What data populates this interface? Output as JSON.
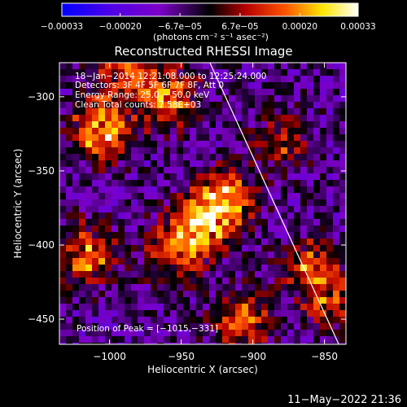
{
  "chart_data": {
    "type": "heatmap",
    "title": "Reconstructed RHESSI Image",
    "xlabel": "Heliocentric X (arcsec)",
    "ylabel": "Heliocentric Y (arcsec)",
    "xlim": [
      -1035,
      -835
    ],
    "ylim": [
      -467,
      -277
    ],
    "xticks": [
      -1000,
      -950,
      -900,
      -850
    ],
    "xtick_labels": [
      "−1000",
      "−950",
      "−900",
      "−850"
    ],
    "yticks": [
      -300,
      -350,
      -400,
      -450
    ],
    "ytick_labels": [
      "−300",
      "−350",
      "−400",
      "−450"
    ],
    "colorbar": {
      "range": [
        -0.00033,
        0.00033
      ],
      "ticks": [
        -0.00033,
        -0.0002,
        -6.7e-05,
        6.7e-05,
        0.0002,
        0.00033
      ],
      "tick_labels": [
        "−0.00033",
        "−0.00020",
        "−6.7e−05",
        "6.7e−05",
        "0.00020",
        "0.00033"
      ],
      "unit_label": "(photons cm⁻² s⁻¹ asec⁻²)",
      "colors": [
        "#0000ff",
        "#7c00c8",
        "#000000",
        "#b40000",
        "#ff5000",
        "#ffe600",
        "#ffffff"
      ]
    },
    "limb_line": [
      [
        -930,
        -277
      ],
      [
        -840,
        -467
      ]
    ],
    "annotations": [
      "18−Jan−2014 12:21:08.000 to 12:25:24.000",
      "Detectors: 3F 4F 5F 6F 7F 8F, Att 0",
      "Energy Range: 25.0 − 50.0 keV",
      "Clean     Total counts: 7.58E+03"
    ],
    "peak_label": "Position of Peak = [−1015,−331]",
    "peak": [
      -1015,
      -331
    ],
    "bright_regions": [
      {
        "x": -1005,
        "y": -322,
        "value": 0.00033
      },
      {
        "x": -960,
        "y": -300,
        "value": 0.00028
      },
      {
        "x": -918,
        "y": -368,
        "value": 0.00025
      },
      {
        "x": -935,
        "y": -385,
        "value": 0.0003
      },
      {
        "x": -1015,
        "y": -406,
        "value": 0.00025
      },
      {
        "x": -955,
        "y": -405,
        "value": 0.00022
      },
      {
        "x": -880,
        "y": -330,
        "value": 0.00016
      },
      {
        "x": -860,
        "y": -415,
        "value": 0.00022
      },
      {
        "x": -908,
        "y": -452,
        "value": 0.00022
      },
      {
        "x": -845,
        "y": -440,
        "value": 0.00018
      },
      {
        "x": -990,
        "y": -280,
        "value": 0.0002
      }
    ]
  },
  "timestamp": "11−May−2022 21:36"
}
